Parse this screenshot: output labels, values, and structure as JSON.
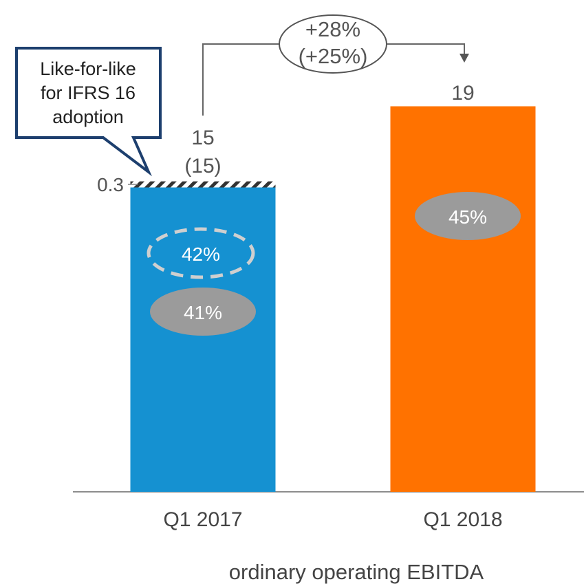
{
  "chart_data": {
    "type": "bar",
    "title": "",
    "xlabel": "ordinary operating EBITDA",
    "ylabel": "",
    "ylim": [
      0,
      22
    ],
    "categories": [
      "Q1 2017",
      "Q1 2018"
    ],
    "values": [
      15,
      19
    ],
    "value_labels": [
      "15",
      "19"
    ],
    "value_sublabels": [
      "(15)",
      ""
    ],
    "ifrs16_adjustment": {
      "value": 0.3,
      "label": "0.3",
      "category": "Q1 2017"
    },
    "margins": [
      {
        "category": "Q1 2017",
        "label": "41%",
        "style": "solid"
      },
      {
        "category": "Q1 2017",
        "label": "42%",
        "style": "dashed"
      },
      {
        "category": "Q1 2018",
        "label": "45%",
        "style": "solid"
      }
    ],
    "growth": {
      "line1": "+28%",
      "line2": "(+25%)"
    },
    "callout": {
      "lines": [
        "Like-for-like",
        "for IFRS 16",
        "adoption"
      ]
    },
    "colors": {
      "bar_q1_2017": "#1591d1",
      "bar_q1_2018": "#ff7200",
      "margin_pill": "#9b9b9b",
      "dashed_pill": "#cfcfcf",
      "callout_border": "#1d3f6e",
      "text": "#555555",
      "axis": "#666666"
    }
  }
}
